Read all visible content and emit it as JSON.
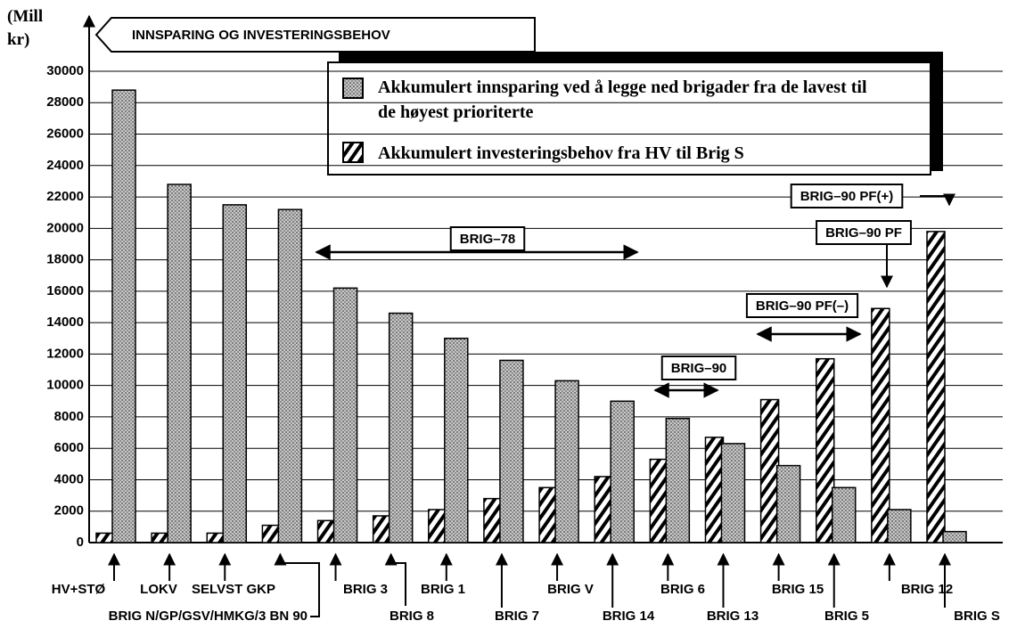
{
  "chart_data": {
    "type": "bar",
    "title": "INNSPARING OG INVESTERINGSBEHOV",
    "y_label": "(Mill kr)",
    "categories": [
      "HV+STØ",
      "LOKV",
      "SELVST GKP",
      "BRIG N/GP/GSV/HMKG/3 BN 90",
      "BRIG 3",
      "BRIG 8",
      "BRIG 1",
      "BRIG 7",
      "BRIG V",
      "BRIG 14",
      "BRIG 6",
      "BRIG 13",
      "BRIG 15",
      "BRIG 5",
      "BRIG 12",
      "BRIG S"
    ],
    "series": [
      {
        "name": "Akkumulert innsparing ved å legge ned brigader fra de lavest til de høyest prioriterte",
        "color": "#9a9a9a",
        "pattern": "dots",
        "values": [
          28800,
          22800,
          21500,
          21200,
          16200,
          14600,
          13000,
          11600,
          10300,
          9000,
          7900,
          6300,
          4900,
          3500,
          2100,
          700
        ]
      },
      {
        "name": "Akkumulert investeringsbehov fra HV til Brig S",
        "color": "#000000",
        "pattern": "hatch",
        "values": [
          600,
          600,
          600,
          1100,
          1400,
          1700,
          2100,
          2800,
          3500,
          4200,
          5300,
          6700,
          9100,
          11700,
          14900,
          19800
        ]
      }
    ],
    "annotations": [
      "BRIG–78",
      "BRIG–90",
      "BRIG–90 PF(–)",
      "BRIG–90 PF",
      "BRIG–90 PF(+)"
    ],
    "ylim": [
      0,
      30000
    ],
    "yticks": [
      0,
      2000,
      4000,
      6000,
      8000,
      10000,
      12000,
      14000,
      16000,
      18000,
      20000,
      22000,
      24000,
      26000,
      28000,
      30000
    ],
    "grid": true
  }
}
